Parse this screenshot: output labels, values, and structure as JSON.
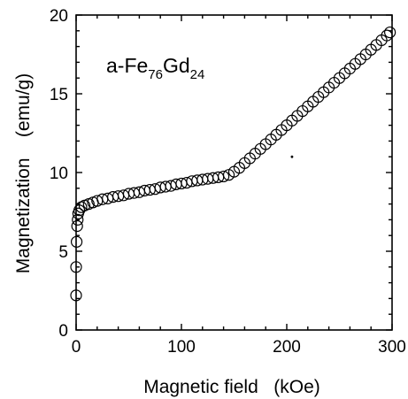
{
  "chart_data": {
    "type": "scatter",
    "title": "",
    "annotation": {
      "prefix": "a-Fe",
      "sub1": "76",
      "mid": "Gd",
      "sub2": "24"
    },
    "xlabel": "Magnetic field   (kOe)",
    "ylabel": "Magnetization    (emu/g)",
    "xlim": [
      0,
      300
    ],
    "ylim": [
      0,
      20
    ],
    "xticks": [
      0,
      100,
      200,
      300
    ],
    "yticks": [
      0,
      5,
      10,
      15,
      20
    ],
    "xtick_labels": [
      "0",
      "100",
      "200",
      "300"
    ],
    "ytick_labels": [
      "0",
      "5",
      "10",
      "15",
      "20"
    ],
    "grid": false,
    "legend": "none",
    "marker": "open-circle",
    "series": [
      {
        "points": [
          [
            0,
            2.2
          ],
          [
            0,
            4.0
          ],
          [
            0.5,
            5.6
          ],
          [
            1,
            6.6
          ],
          [
            1.5,
            7.0
          ],
          [
            2,
            7.4
          ],
          [
            3,
            7.6
          ],
          [
            5,
            7.8
          ],
          [
            8,
            7.9
          ],
          [
            12,
            8.0
          ],
          [
            16,
            8.1
          ],
          [
            20,
            8.2
          ],
          [
            25,
            8.3
          ],
          [
            30,
            8.35
          ],
          [
            35,
            8.45
          ],
          [
            40,
            8.5
          ],
          [
            45,
            8.55
          ],
          [
            50,
            8.65
          ],
          [
            55,
            8.7
          ],
          [
            60,
            8.75
          ],
          [
            65,
            8.85
          ],
          [
            70,
            8.9
          ],
          [
            75,
            8.95
          ],
          [
            80,
            9.05
          ],
          [
            85,
            9.1
          ],
          [
            90,
            9.15
          ],
          [
            95,
            9.25
          ],
          [
            100,
            9.3
          ],
          [
            105,
            9.35
          ],
          [
            110,
            9.45
          ],
          [
            115,
            9.5
          ],
          [
            120,
            9.55
          ],
          [
            125,
            9.6
          ],
          [
            130,
            9.65
          ],
          [
            135,
            9.7
          ],
          [
            140,
            9.75
          ],
          [
            145,
            9.85
          ],
          [
            150,
            10.05
          ],
          [
            155,
            10.3
          ],
          [
            160,
            10.6
          ],
          [
            165,
            10.9
          ],
          [
            170,
            11.2
          ],
          [
            175,
            11.5
          ],
          [
            180,
            11.8
          ],
          [
            185,
            12.1
          ],
          [
            190,
            12.4
          ],
          [
            195,
            12.7
          ],
          [
            200,
            13.0
          ],
          [
            205,
            13.3
          ],
          [
            210,
            13.6
          ],
          [
            215,
            13.9
          ],
          [
            220,
            14.2
          ],
          [
            225,
            14.5
          ],
          [
            230,
            14.8
          ],
          [
            235,
            15.1
          ],
          [
            240,
            15.4
          ],
          [
            245,
            15.7
          ],
          [
            250,
            16.0
          ],
          [
            255,
            16.3
          ],
          [
            260,
            16.6
          ],
          [
            265,
            16.9
          ],
          [
            270,
            17.2
          ],
          [
            275,
            17.5
          ],
          [
            280,
            17.8
          ],
          [
            285,
            18.1
          ],
          [
            290,
            18.4
          ],
          [
            295,
            18.7
          ],
          [
            298,
            18.9
          ]
        ]
      }
    ],
    "stray_point": [
      205,
      11.0
    ]
  }
}
